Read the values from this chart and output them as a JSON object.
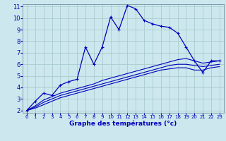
{
  "xlabel": "Graphe des températures (°c)",
  "ylabel": "",
  "background_color": "#cce8ee",
  "grid_color": "#aacccc",
  "line_color": "#0000bb",
  "xlim": [
    -0.5,
    23.5
  ],
  "ylim": [
    1.8,
    11.2
  ],
  "xticks": [
    0,
    1,
    2,
    3,
    4,
    5,
    6,
    7,
    8,
    9,
    10,
    11,
    12,
    13,
    14,
    15,
    16,
    17,
    18,
    19,
    20,
    21,
    22,
    23
  ],
  "yticks": [
    2,
    3,
    4,
    5,
    6,
    7,
    8,
    9,
    10,
    11
  ],
  "series": {
    "main": {
      "x": [
        0,
        1,
        2,
        3,
        4,
        5,
        6,
        7,
        8,
        9,
        10,
        11,
        12,
        13,
        14,
        15,
        16,
        17,
        18,
        19,
        20,
        21,
        22,
        23
      ],
      "y": [
        2.0,
        2.8,
        3.5,
        3.3,
        4.2,
        4.5,
        4.7,
        7.5,
        6.0,
        7.5,
        10.1,
        9.0,
        11.1,
        10.8,
        9.8,
        9.5,
        9.3,
        9.2,
        8.7,
        7.5,
        6.3,
        5.3,
        6.3,
        6.3
      ]
    },
    "line2": {
      "x": [
        0,
        1,
        2,
        3,
        4,
        5,
        6,
        7,
        8,
        9,
        10,
        11,
        12,
        13,
        14,
        15,
        16,
        17,
        18,
        19,
        20,
        21,
        22,
        23
      ],
      "y": [
        2.0,
        2.4,
        2.9,
        3.2,
        3.5,
        3.7,
        3.9,
        4.1,
        4.3,
        4.6,
        4.8,
        5.0,
        5.2,
        5.4,
        5.6,
        5.8,
        6.0,
        6.2,
        6.4,
        6.5,
        6.3,
        6.1,
        6.2,
        6.3
      ]
    },
    "line3": {
      "x": [
        0,
        1,
        2,
        3,
        4,
        5,
        6,
        7,
        8,
        9,
        10,
        11,
        12,
        13,
        14,
        15,
        16,
        17,
        18,
        19,
        20,
        21,
        22,
        23
      ],
      "y": [
        2.0,
        2.3,
        2.7,
        3.0,
        3.3,
        3.5,
        3.7,
        3.9,
        4.1,
        4.3,
        4.5,
        4.7,
        4.9,
        5.1,
        5.3,
        5.5,
        5.7,
        5.9,
        6.0,
        6.0,
        5.9,
        5.8,
        5.9,
        6.0
      ]
    },
    "line4": {
      "x": [
        0,
        1,
        2,
        3,
        4,
        5,
        6,
        7,
        8,
        9,
        10,
        11,
        12,
        13,
        14,
        15,
        16,
        17,
        18,
        19,
        20,
        21,
        22,
        23
      ],
      "y": [
        2.0,
        2.2,
        2.5,
        2.8,
        3.1,
        3.3,
        3.5,
        3.7,
        3.9,
        4.1,
        4.3,
        4.5,
        4.7,
        4.9,
        5.1,
        5.3,
        5.5,
        5.6,
        5.7,
        5.7,
        5.5,
        5.5,
        5.7,
        5.8
      ]
    }
  },
  "tick_fontsize_x": 5,
  "tick_fontsize_y": 6,
  "xlabel_fontsize": 6.5
}
